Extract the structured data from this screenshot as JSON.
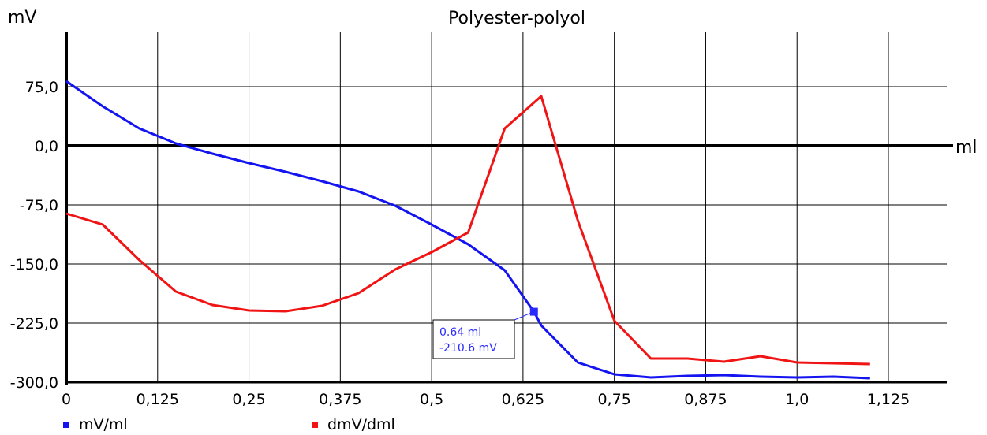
{
  "chart_data": {
    "type": "line",
    "title": "Polyester-polyol",
    "ylabel": "mV",
    "xlabel": "ml",
    "xlim": [
      0,
      1.19
    ],
    "ylim": [
      -300,
      143
    ],
    "x_ticks": [
      "0",
      "0,125",
      "0,25",
      "0,375",
      "0,5",
      "0,625",
      "0,75",
      "0,875",
      "1,0",
      "1,125"
    ],
    "x_tick_values": [
      0,
      0.125,
      0.25,
      0.375,
      0.5,
      0.625,
      0.75,
      0.875,
      1.0,
      1.125
    ],
    "y_ticks": [
      "75,0",
      "0,0",
      "-75,0",
      "-150,0",
      "-225,0",
      "-300,0"
    ],
    "y_tick_values": [
      75,
      0,
      -75,
      -150,
      -225,
      -300
    ],
    "grid": true,
    "legend_position": "bottom-left",
    "series": [
      {
        "name": "mV/ml",
        "color": "#1414f0",
        "x": [
          0,
          0.05,
          0.1,
          0.15,
          0.2,
          0.25,
          0.3,
          0.35,
          0.4,
          0.45,
          0.5,
          0.55,
          0.6,
          0.64,
          0.65,
          0.7,
          0.75,
          0.8,
          0.85,
          0.9,
          0.95,
          1.0,
          1.05,
          1.1
        ],
        "y": [
          82,
          50,
          22,
          3,
          -10,
          -22,
          -33,
          -45,
          -58,
          -76,
          -100,
          -125,
          -158,
          -210.6,
          -228,
          -275,
          -290,
          -294,
          -292,
          -291,
          -293,
          -294,
          -293,
          -295
        ]
      },
      {
        "name": "dmV/dml",
        "color": "#f01414",
        "x": [
          0,
          0.05,
          0.1,
          0.15,
          0.2,
          0.25,
          0.3,
          0.35,
          0.4,
          0.45,
          0.5,
          0.55,
          0.6,
          0.65,
          0.7,
          0.75,
          0.8,
          0.85,
          0.9,
          0.95,
          1.0,
          1.05,
          1.1
        ],
        "y": [
          -86,
          -100,
          -145,
          -185,
          -202,
          -209,
          -210,
          -203,
          -187,
          -157,
          -135,
          -110,
          22,
          63,
          -95,
          -222,
          -270,
          -270,
          -274,
          -267,
          -275,
          -276,
          -277
        ]
      }
    ],
    "tooltip": {
      "x": 0.64,
      "y": -210.6,
      "label_x": "0.64 ml",
      "label_y": "-210.6 mV",
      "color": "#2a2aff"
    }
  }
}
